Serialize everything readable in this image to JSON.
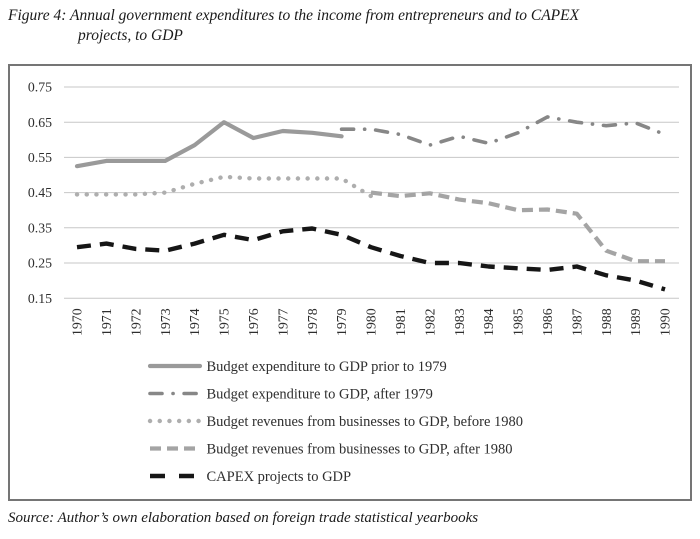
{
  "figure": {
    "title_line1": "Figure 4: Annual government expenditures to the income from entrepreneurs and to CAPEX",
    "title_line2": "projects, to GDP",
    "source": "Source: Author’s own elaboration based on foreign trade statistical yearbooks"
  },
  "chart_data": {
    "type": "line",
    "title": "Figure 4: Annual government expenditures to the income from entrepreneurs and to CAPEX projects, to GDP",
    "xlabel": "",
    "ylabel": "",
    "x": [
      1970,
      1971,
      1972,
      1973,
      1974,
      1975,
      1976,
      1977,
      1978,
      1979,
      1980,
      1981,
      1982,
      1983,
      1984,
      1985,
      1986,
      1987,
      1988,
      1989,
      1990
    ],
    "ylim": [
      0.15,
      0.75
    ],
    "yticks": [
      0.75,
      0.65,
      0.55,
      0.45,
      0.35,
      0.25,
      0.15
    ],
    "grid": true,
    "grid_color": "#c7c7c7",
    "legend_position": "bottom-inside",
    "series": [
      {
        "name": "Budget expenditure to GDP prior to 1979",
        "style": "solid",
        "color": "#9a9a9a",
        "width": 4.2,
        "x_start": 1970,
        "values": [
          0.525,
          0.54,
          0.54,
          0.54,
          0.585,
          0.65,
          0.605,
          0.625,
          0.62,
          0.61
        ]
      },
      {
        "name": "Budget expenditure to GDP, after 1979",
        "style": "dash-dot",
        "color": "#878787",
        "width": 3.6,
        "x_start": 1979,
        "values": [
          0.63,
          0.63,
          0.615,
          0.585,
          0.61,
          0.59,
          0.62,
          0.665,
          0.65,
          0.64,
          0.648,
          0.615
        ]
      },
      {
        "name": "Budget revenues from businesses to GDP, before 1980",
        "style": "dotted",
        "color": "#aeaeae",
        "width": 4.4,
        "x_start": 1970,
        "values": [
          0.445,
          0.445,
          0.445,
          0.45,
          0.475,
          0.495,
          0.49,
          0.49,
          0.49,
          0.49,
          0.44
        ]
      },
      {
        "name": "Budget revenues from businesses to GDP, after 1980",
        "style": "dashed",
        "color": "#a4a4a4",
        "width": 4.2,
        "x_start": 1980,
        "values": [
          0.45,
          0.44,
          0.448,
          0.43,
          0.42,
          0.4,
          0.402,
          0.39,
          0.285,
          0.255,
          0.255
        ]
      },
      {
        "name": "CAPEX projects to GDP",
        "style": "dashed-bold",
        "color": "#161616",
        "width": 4.4,
        "x_start": 1970,
        "values": [
          0.295,
          0.305,
          0.29,
          0.285,
          0.305,
          0.33,
          0.315,
          0.34,
          0.348,
          0.33,
          0.295,
          0.27,
          0.25,
          0.25,
          0.24,
          0.235,
          0.23,
          0.24,
          0.215,
          0.2,
          0.175
        ]
      }
    ]
  }
}
